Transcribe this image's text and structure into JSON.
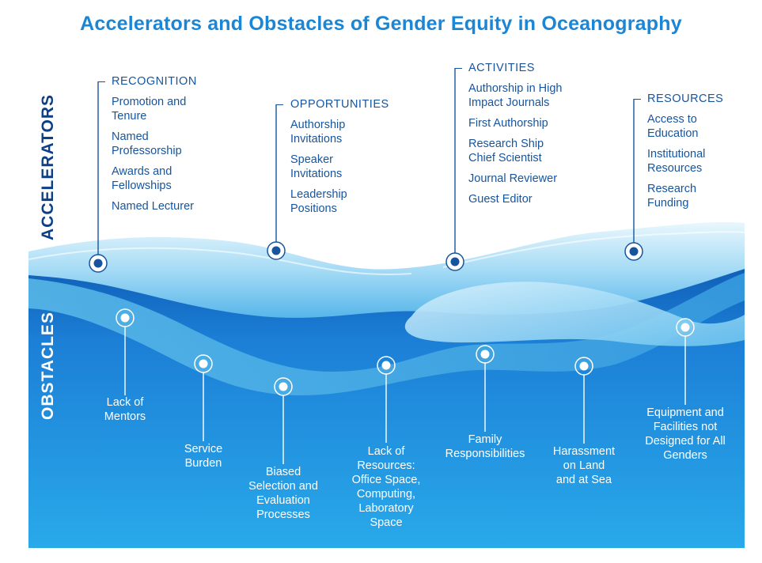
{
  "title": "Accelerators and Obstacles of Gender Equity in Oceanography",
  "labels": {
    "accelerators": "ACCELERATORS",
    "obstacles": "OBSTACLES"
  },
  "colors": {
    "title": "#1b86d6",
    "accel_text": "#16559e",
    "obstacle_text": "#ffffff",
    "deep_water": "#0d5bb8",
    "light_water": "#6fc7f0"
  },
  "accelerators": [
    {
      "heading": "RECOGNITION",
      "items": [
        "Promotion and\nTenure",
        "Named\nProfessorship",
        "Awards and\nFellowships",
        "Named Lecturer"
      ]
    },
    {
      "heading": "OPPORTUNITIES",
      "items": [
        "Authorship\nInvitations",
        "Speaker\nInvitations",
        "Leadership\nPositions"
      ]
    },
    {
      "heading": "ACTIVITIES",
      "items": [
        "Authorship in High\nImpact Journals",
        "First Authorship",
        "Research Ship\nChief Scientist",
        "Journal Reviewer",
        "Guest Editor"
      ]
    },
    {
      "heading": "RESOURCES",
      "items": [
        "Access to\nEducation",
        "Institutional\nResources",
        "Research\nFunding"
      ]
    }
  ],
  "obstacles": [
    "Lack of\nMentors",
    "Service\nBurden",
    "Biased\nSelection and\nEvaluation\nProcesses",
    "Lack of\nResources:\nOffice Space,\nComputing,\nLaboratory\nSpace",
    "Family\nResponsibilities",
    "Harassment\non Land\nand at Sea",
    "Equipment and\nFacilities not\nDesigned for All\nGenders"
  ]
}
